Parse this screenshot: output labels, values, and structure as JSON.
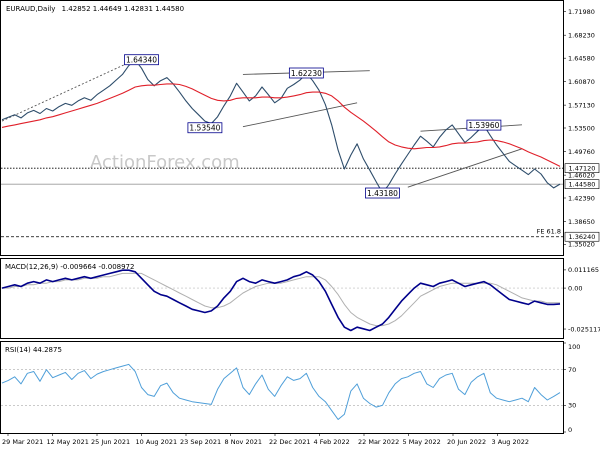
{
  "header": {
    "symbol": "EURAUD,Daily",
    "ohlc": "1.42852 1.44649 1.42831 1.44580"
  },
  "watermark": "ActionForex.com",
  "colors": {
    "price": "#2e4d6b",
    "ema": "#e0202a",
    "macd": "#00008b",
    "signal": "#b0b0b0",
    "rsi": "#4f9fd9",
    "label_border": "#00008b"
  },
  "chart_data": [
    {
      "type": "line",
      "panel": "price",
      "title": "EURAUD,Daily",
      "ylim": [
        1.335,
        1.735
      ],
      "y_ticks": [
        "1.71980",
        "1.68230",
        "1.64580",
        "1.60870",
        "1.57130",
        "1.53500",
        "1.49760",
        "1.46020",
        "1.42390",
        "1.38650",
        "1.35020"
      ],
      "x_ticks": [
        "29 Mar 2021",
        "12 May 2021",
        "25 Jun 2021",
        "10 Aug 2021",
        "23 Sep 2021",
        "8 Nov 2021",
        "22 Dec 2021",
        "4 Feb 2022",
        "22 Mar 2022",
        "5 May 2022",
        "20 Jun 2022",
        "3 Aug 2022"
      ],
      "series": [
        {
          "kind": "price",
          "values": [
            1.548,
            1.552,
            1.556,
            1.551,
            1.559,
            1.563,
            1.558,
            1.566,
            1.562,
            1.569,
            1.574,
            1.571,
            1.578,
            1.583,
            1.579,
            1.588,
            1.595,
            1.602,
            1.611,
            1.62,
            1.634,
            1.643,
            1.63,
            1.612,
            1.602,
            1.61,
            1.615,
            1.605,
            1.592,
            1.578,
            1.566,
            1.556,
            1.546,
            1.542,
            1.553,
            1.57,
            1.586,
            1.606,
            1.592,
            1.578,
            1.586,
            1.6,
            1.588,
            1.575,
            1.582,
            1.598,
            1.604,
            1.611,
            1.622,
            1.61,
            1.595,
            1.572,
            1.54,
            1.5,
            1.47,
            1.492,
            1.51,
            1.486,
            1.468,
            1.45,
            1.432,
            1.445,
            1.462,
            1.478,
            1.493,
            1.508,
            1.522,
            1.514,
            1.505,
            1.52,
            1.532,
            1.54,
            1.526,
            1.512,
            1.52,
            1.53,
            1.539,
            1.523,
            1.508,
            1.495,
            1.482,
            1.475,
            1.468,
            1.461,
            1.47,
            1.462,
            1.448,
            1.44,
            1.446
          ]
        },
        {
          "kind": "ema",
          "values": [
            1.536,
            1.538,
            1.54,
            1.542,
            1.544,
            1.546,
            1.548,
            1.551,
            1.553,
            1.556,
            1.559,
            1.562,
            1.565,
            1.568,
            1.571,
            1.574,
            1.578,
            1.582,
            1.586,
            1.59,
            1.595,
            1.6,
            1.602,
            1.603,
            1.603,
            1.604,
            1.605,
            1.605,
            1.604,
            1.601,
            1.597,
            1.592,
            1.587,
            1.582,
            1.579,
            1.578,
            1.579,
            1.582,
            1.583,
            1.583,
            1.583,
            1.584,
            1.584,
            1.583,
            1.583,
            1.584,
            1.586,
            1.588,
            1.591,
            1.592,
            1.592,
            1.59,
            1.586,
            1.578,
            1.568,
            1.56,
            1.553,
            1.546,
            1.538,
            1.53,
            1.521,
            1.513,
            1.508,
            1.505,
            1.503,
            1.502,
            1.503,
            1.504,
            1.504,
            1.505,
            1.507,
            1.51,
            1.511,
            1.511,
            1.512,
            1.513,
            1.515,
            1.516,
            1.515,
            1.513,
            1.51,
            1.506,
            1.502,
            1.497,
            1.493,
            1.489,
            1.484,
            1.479,
            1.474
          ]
        }
      ],
      "annotations": [
        {
          "kind": "box_label",
          "text": "1.64340",
          "x": 22,
          "y": 1.6434
        },
        {
          "kind": "box_label",
          "text": "1.53540",
          "x": 32,
          "y": 1.5354
        },
        {
          "kind": "box_label",
          "text": "1.62230",
          "x": 48,
          "y": 1.6223
        },
        {
          "kind": "box_label",
          "text": "1.43180",
          "x": 60,
          "y": 1.4318
        },
        {
          "kind": "box_label",
          "text": "1.53960",
          "x": 76,
          "y": 1.5396
        },
        {
          "kind": "level_label",
          "text": "1.47120",
          "y": 1.4712
        },
        {
          "kind": "level_label",
          "text": "1.44580",
          "y": 1.4458
        },
        {
          "kind": "level_label",
          "text": "1.36240",
          "y": 1.3624
        },
        {
          "kind": "text",
          "text": "FE 61.8"
        }
      ],
      "trendlines": [
        {
          "style": "dashed",
          "points": [
            [
              0,
              1.546
            ],
            [
              21,
              1.6434
            ]
          ]
        },
        {
          "style": "solid",
          "points": [
            [
              38,
              1.62
            ],
            [
              58,
              1.626
            ]
          ]
        },
        {
          "style": "solid",
          "points": [
            [
              38,
              1.537
            ],
            [
              56,
              1.575
            ]
          ]
        },
        {
          "style": "solid",
          "points": [
            [
              64,
              1.441
            ],
            [
              82,
              1.502
            ]
          ]
        },
        {
          "style": "solid",
          "points": [
            [
              66,
              1.53
            ],
            [
              82,
              1.54
            ]
          ]
        }
      ],
      "hlines": [
        {
          "style": "dotted",
          "y": 1.4712
        },
        {
          "style": "solid-gray",
          "y": 1.4458
        },
        {
          "style": "dashed",
          "y": 1.3624
        }
      ]
    },
    {
      "type": "line",
      "panel": "macd",
      "title": "MACD(12,26,9) -0.009664 -0.008972",
      "ylim": [
        -0.03,
        0.016
      ],
      "y_ticks": [
        "0.011165",
        "0.00",
        "-0.025117"
      ],
      "series": [
        {
          "kind": "macd",
          "values": [
            0.0,
            0.001,
            0.002,
            0.001,
            0.003,
            0.004,
            0.003,
            0.005,
            0.004,
            0.005,
            0.006,
            0.005,
            0.006,
            0.007,
            0.006,
            0.007,
            0.008,
            0.009,
            0.01,
            0.011,
            0.011,
            0.01,
            0.006,
            0.002,
            -0.002,
            -0.004,
            -0.005,
            -0.007,
            -0.009,
            -0.011,
            -0.013,
            -0.014,
            -0.015,
            -0.014,
            -0.011,
            -0.006,
            -0.002,
            0.004,
            0.006,
            0.004,
            0.003,
            0.005,
            0.004,
            0.003,
            0.004,
            0.005,
            0.007,
            0.008,
            0.01,
            0.008,
            0.004,
            -0.002,
            -0.01,
            -0.018,
            -0.024,
            -0.026,
            -0.024,
            -0.025,
            -0.026,
            -0.024,
            -0.022,
            -0.018,
            -0.013,
            -0.008,
            -0.004,
            0.0,
            0.003,
            0.002,
            0.001,
            0.003,
            0.004,
            0.005,
            0.003,
            0.001,
            0.002,
            0.003,
            0.004,
            0.002,
            -0.001,
            -0.004,
            -0.007,
            -0.008,
            -0.009,
            -0.01,
            -0.008,
            -0.009,
            -0.01,
            -0.01,
            -0.0097
          ]
        },
        {
          "kind": "signal",
          "values": [
            0.0,
            0.0,
            0.001,
            0.001,
            0.002,
            0.002,
            0.003,
            0.003,
            0.004,
            0.004,
            0.005,
            0.005,
            0.005,
            0.006,
            0.006,
            0.006,
            0.007,
            0.007,
            0.008,
            0.009,
            0.009,
            0.009,
            0.009,
            0.007,
            0.005,
            0.003,
            0.001,
            -0.001,
            -0.003,
            -0.005,
            -0.007,
            -0.009,
            -0.011,
            -0.012,
            -0.012,
            -0.011,
            -0.009,
            -0.006,
            -0.003,
            -0.001,
            0.001,
            0.002,
            0.003,
            0.003,
            0.003,
            0.004,
            0.005,
            0.006,
            0.007,
            0.007,
            0.007,
            0.005,
            0.001,
            -0.004,
            -0.01,
            -0.015,
            -0.018,
            -0.02,
            -0.022,
            -0.023,
            -0.023,
            -0.022,
            -0.02,
            -0.017,
            -0.013,
            -0.009,
            -0.005,
            -0.003,
            -0.001,
            0.001,
            0.002,
            0.003,
            0.003,
            0.003,
            0.003,
            0.003,
            0.003,
            0.003,
            0.002,
            0.0,
            -0.002,
            -0.004,
            -0.006,
            -0.007,
            -0.008,
            -0.008,
            -0.009,
            -0.009,
            -0.009
          ]
        }
      ]
    },
    {
      "type": "line",
      "panel": "rsi",
      "title": "RSI(14) 44.2875",
      "ylim": [
        0,
        100
      ],
      "y_ticks": [
        "100",
        "70",
        "30",
        "0"
      ],
      "series": [
        {
          "kind": "rsi",
          "values": [
            55,
            58,
            62,
            54,
            66,
            68,
            57,
            70,
            61,
            64,
            67,
            59,
            66,
            69,
            60,
            65,
            68,
            70,
            72,
            74,
            76,
            68,
            50,
            42,
            40,
            52,
            55,
            44,
            38,
            36,
            34,
            33,
            32,
            31,
            48,
            60,
            66,
            72,
            50,
            42,
            54,
            64,
            48,
            40,
            52,
            62,
            58,
            60,
            66,
            50,
            40,
            34,
            24,
            14,
            20,
            46,
            54,
            38,
            32,
            28,
            30,
            44,
            54,
            60,
            62,
            66,
            68,
            54,
            50,
            60,
            64,
            66,
            48,
            42,
            56,
            62,
            66,
            44,
            38,
            36,
            34,
            36,
            38,
            34,
            50,
            42,
            36,
            40,
            44.2875
          ]
        }
      ]
    }
  ]
}
